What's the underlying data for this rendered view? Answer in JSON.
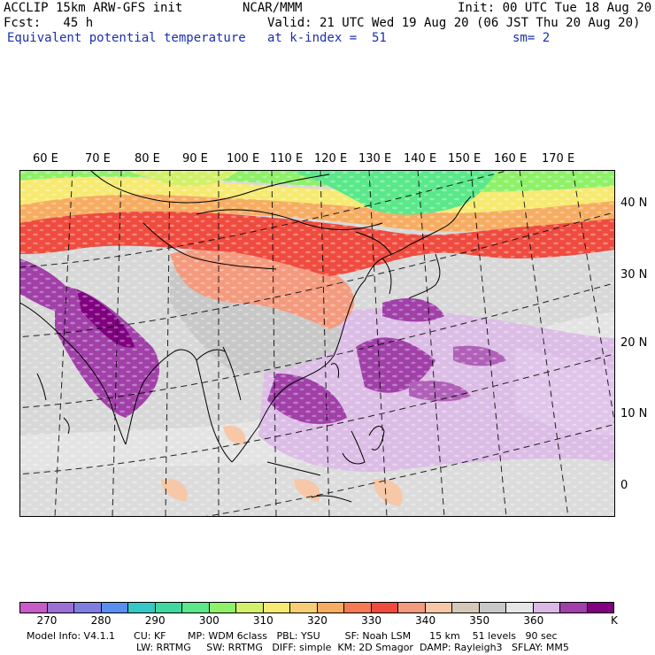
{
  "header": {
    "line1_left": "ACCLIP 15km ARW-GFS init",
    "line1_mid": "NCAR/MMM",
    "line1_right": "Init: 00 UTC Tue 18 Aug 20",
    "line2_left": "Fcst:   45 h",
    "line2_right": "Valid: 21 UTC Wed 19 Aug 20 (06 JST Thu 20 Aug 20)",
    "field_name": "Equivalent potential temperature",
    "level": "at k-index =  51",
    "smoothing": "sm= 2"
  },
  "map": {
    "lon_labels": [
      "60 E",
      "70 E",
      "80 E",
      "90 E",
      "100 E",
      "110 E",
      "120 E",
      "130 E",
      "140 E",
      "150 E",
      "160 E",
      "170 E"
    ],
    "lat_labels": [
      "40 N",
      "30 N",
      "20 N",
      "10 N",
      "0"
    ]
  },
  "colorbar": {
    "unit": "K",
    "colors": [
      "#c85bc8",
      "#9a6fd6",
      "#7f7ee0",
      "#5a8ff0",
      "#36c7c7",
      "#3fd8a0",
      "#5ae88a",
      "#8ff06a",
      "#d2f06a",
      "#f6ea72",
      "#f7cf72",
      "#f6ad62",
      "#f37a52",
      "#ef4b3f",
      "#f49a7e",
      "#f6c8a8",
      "#d6c8b8",
      "#c8c8c8",
      "#e6e6e6",
      "#dcb8e6",
      "#a040a8",
      "#800080"
    ],
    "labels": [
      "270",
      "280",
      "290",
      "300",
      "310",
      "320",
      "330",
      "340",
      "350",
      "360"
    ]
  },
  "footer": {
    "line1": "Model Info: V4.1.1      CU: KF       MP: WDM 6class   PBL: YSU        SF: Noah LSM      15 km    51 levels   90 sec",
    "line2": "LW: RRTMG     SW: RRTMG   DIFF: simple  KM: 2D Smagor  DAMP: Rayleigh3   SFLAY: MM5"
  }
}
